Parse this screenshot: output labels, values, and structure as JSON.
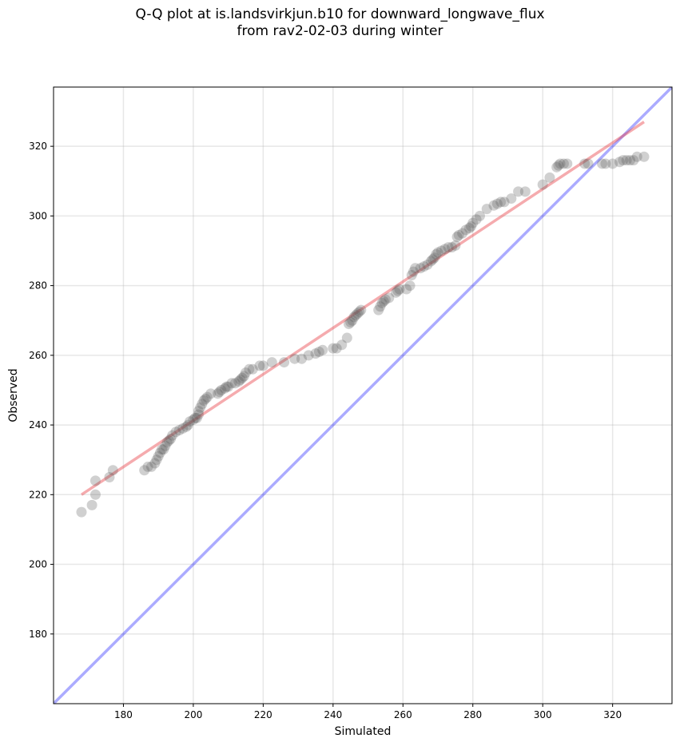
{
  "chart_data": {
    "type": "scatter",
    "title_line1": "Q-Q plot at is.landsvirkjun.b10 for downward_longwave_flux",
    "title_line2": "from rav2-02-03 during winter",
    "xlabel": "Simulated",
    "ylabel": "Observed",
    "xlim": [
      160,
      337
    ],
    "ylim": [
      160,
      337
    ],
    "xticks": [
      180,
      200,
      220,
      240,
      260,
      280,
      300,
      320
    ],
    "yticks": [
      180,
      200,
      220,
      240,
      260,
      280,
      300,
      320
    ],
    "grid": true,
    "point_color": "#555555",
    "one_to_one_line": {
      "color": "#0000ff",
      "from": [
        160,
        160
      ],
      "to": [
        337,
        337
      ]
    },
    "fit_line": {
      "color": "#e8383d",
      "from": [
        168,
        220
      ],
      "to": [
        329,
        327
      ]
    },
    "points": [
      [
        168,
        215
      ],
      [
        171,
        217
      ],
      [
        172,
        220
      ],
      [
        172,
        224
      ],
      [
        176,
        225
      ],
      [
        177,
        227
      ],
      [
        186,
        227
      ],
      [
        187,
        228
      ],
      [
        188,
        228
      ],
      [
        189,
        229
      ],
      [
        189.5,
        230
      ],
      [
        190,
        231
      ],
      [
        190.5,
        232
      ],
      [
        191,
        233
      ],
      [
        191.5,
        233
      ],
      [
        192,
        234
      ],
      [
        192.5,
        235
      ],
      [
        193,
        235.5
      ],
      [
        193.5,
        236
      ],
      [
        194,
        237
      ],
      [
        195,
        238
      ],
      [
        196,
        238.5
      ],
      [
        197,
        239
      ],
      [
        198,
        239.5
      ],
      [
        198.5,
        240
      ],
      [
        199,
        241
      ],
      [
        200,
        241.5
      ],
      [
        200.5,
        242
      ],
      [
        201,
        242
      ],
      [
        201.5,
        243
      ],
      [
        201.5,
        244
      ],
      [
        202,
        245
      ],
      [
        202.5,
        246
      ],
      [
        203,
        247
      ],
      [
        203.5,
        247.5
      ],
      [
        204,
        248
      ],
      [
        205,
        249
      ],
      [
        207,
        249
      ],
      [
        207.5,
        249.5
      ],
      [
        208,
        250
      ],
      [
        209,
        250.5
      ],
      [
        209.5,
        251
      ],
      [
        210,
        251
      ],
      [
        211,
        252
      ],
      [
        212,
        252
      ],
      [
        213,
        252.5
      ],
      [
        213.5,
        253
      ],
      [
        214,
        253.5
      ],
      [
        214.5,
        254
      ],
      [
        215,
        255
      ],
      [
        216,
        256
      ],
      [
        217,
        256
      ],
      [
        219,
        257
      ],
      [
        220,
        257
      ],
      [
        222.5,
        258
      ],
      [
        226,
        258
      ],
      [
        229,
        259
      ],
      [
        231,
        259
      ],
      [
        233,
        260
      ],
      [
        235,
        260.5
      ],
      [
        236,
        261
      ],
      [
        237,
        261.5
      ],
      [
        240,
        262
      ],
      [
        241,
        262
      ],
      [
        242.5,
        263
      ],
      [
        244,
        265
      ],
      [
        244.5,
        269
      ],
      [
        245,
        269.5
      ],
      [
        245.5,
        270
      ],
      [
        246,
        271
      ],
      [
        246.5,
        271.5
      ],
      [
        247,
        272
      ],
      [
        247.5,
        272.5
      ],
      [
        248,
        273
      ],
      [
        253,
        273
      ],
      [
        253.5,
        274
      ],
      [
        254,
        275
      ],
      [
        254.5,
        275.5
      ],
      [
        255,
        276
      ],
      [
        256,
        276.5
      ],
      [
        258,
        278
      ],
      [
        258.5,
        278.5
      ],
      [
        259,
        279
      ],
      [
        261,
        279
      ],
      [
        262,
        280
      ],
      [
        262.5,
        283
      ],
      [
        263,
        284
      ],
      [
        263.5,
        285
      ],
      [
        265,
        285
      ],
      [
        266,
        285.5
      ],
      [
        267,
        286
      ],
      [
        268,
        287
      ],
      [
        268.5,
        287.5
      ],
      [
        269,
        288
      ],
      [
        269.5,
        289
      ],
      [
        270,
        289.5
      ],
      [
        271,
        290
      ],
      [
        272,
        290.5
      ],
      [
        273,
        291
      ],
      [
        274,
        291
      ],
      [
        275,
        291.5
      ],
      [
        275.5,
        294
      ],
      [
        276,
        294.5
      ],
      [
        277,
        295
      ],
      [
        278,
        296
      ],
      [
        279,
        296.5
      ],
      [
        279.5,
        297
      ],
      [
        280,
        298
      ],
      [
        281,
        299
      ],
      [
        282,
        300
      ],
      [
        284,
        302
      ],
      [
        286,
        303
      ],
      [
        287,
        303.5
      ],
      [
        288,
        304
      ],
      [
        289,
        304
      ],
      [
        291,
        305
      ],
      [
        293,
        307
      ],
      [
        295,
        307
      ],
      [
        300,
        309
      ],
      [
        302,
        311
      ],
      [
        304,
        314
      ],
      [
        304.5,
        314.5
      ],
      [
        305,
        315
      ],
      [
        306,
        315
      ],
      [
        307,
        315
      ],
      [
        312,
        315
      ],
      [
        313,
        315
      ],
      [
        317,
        315
      ],
      [
        318,
        315
      ],
      [
        320,
        315
      ],
      [
        322,
        315.5
      ],
      [
        323,
        316
      ],
      [
        324,
        316
      ],
      [
        325,
        316
      ],
      [
        326,
        316
      ],
      [
        327,
        317
      ],
      [
        329,
        317
      ]
    ]
  }
}
